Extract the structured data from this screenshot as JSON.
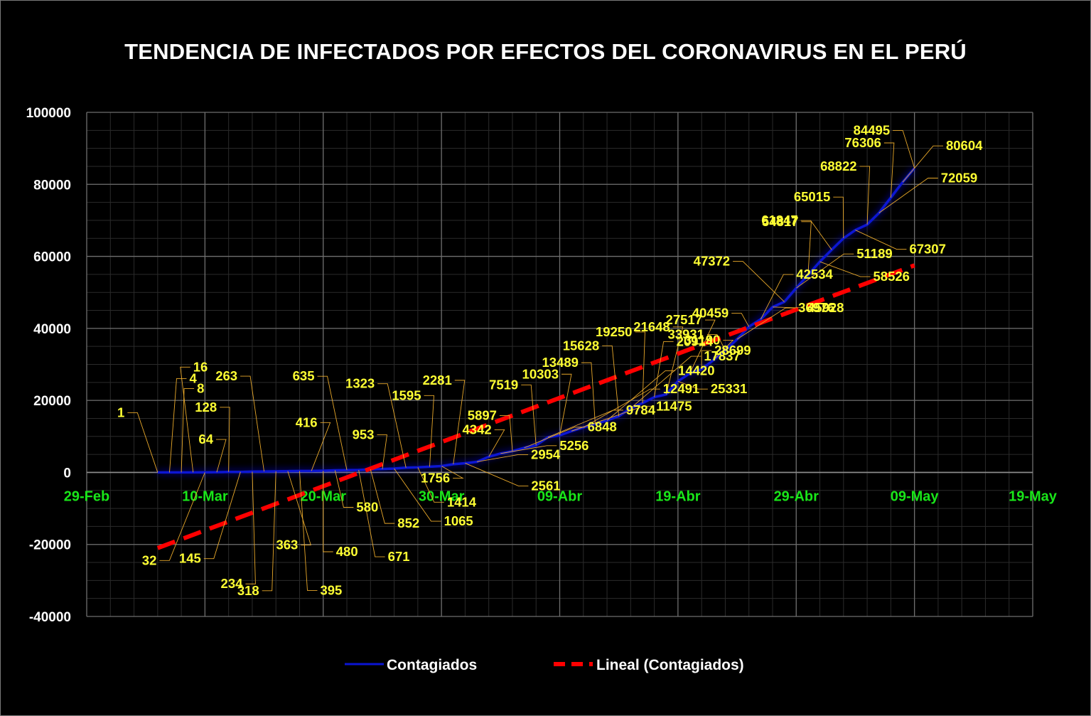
{
  "chart_data": {
    "type": "line",
    "title": "TENDENCIA DE INFECTADOS POR EFECTOS DEL CORONAVIRUS EN EL PERÚ",
    "xlabel": "",
    "ylabel": "",
    "x_axis": {
      "type": "date",
      "range": [
        "2020-02-29",
        "2020-05-19"
      ],
      "tick_labels": [
        "29-Feb",
        "10-Mar",
        "20-Mar",
        "30-Mar",
        "09-Abr",
        "19-Abr",
        "29-Abr",
        "09-May",
        "19-May"
      ]
    },
    "y_axis": {
      "range": [
        -40000,
        100000
      ],
      "tick_labels": [
        "100000",
        "80000",
        "60000",
        "40000",
        "20000",
        "0",
        "-20000",
        "-40000"
      ]
    },
    "grid": true,
    "legend_position": "bottom",
    "legend": [
      "Contagiados",
      "Lineal (Contagiados)"
    ],
    "series": [
      {
        "name": "Contagiados",
        "color": "#0a14d2",
        "points": [
          {
            "x": "2020-03-06",
            "y": 1
          },
          {
            "x": "2020-03-07",
            "y": 4
          },
          {
            "x": "2020-03-08",
            "y": 8
          },
          {
            "x": "2020-03-09",
            "y": 16
          },
          {
            "x": "2020-03-10",
            "y": 32
          },
          {
            "x": "2020-03-11",
            "y": 64
          },
          {
            "x": "2020-03-12",
            "y": 128
          },
          {
            "x": "2020-03-13",
            "y": 145
          },
          {
            "x": "2020-03-14",
            "y": 234
          },
          {
            "x": "2020-03-15",
            "y": 263
          },
          {
            "x": "2020-03-16",
            "y": 318
          },
          {
            "x": "2020-03-17",
            "y": 363
          },
          {
            "x": "2020-03-18",
            "y": 395
          },
          {
            "x": "2020-03-19",
            "y": 416
          },
          {
            "x": "2020-03-20",
            "y": 480
          },
          {
            "x": "2020-03-21",
            "y": 580
          },
          {
            "x": "2020-03-22",
            "y": 635
          },
          {
            "x": "2020-03-23",
            "y": 671
          },
          {
            "x": "2020-03-24",
            "y": 852
          },
          {
            "x": "2020-03-25",
            "y": 953
          },
          {
            "x": "2020-03-26",
            "y": 1065
          },
          {
            "x": "2020-03-27",
            "y": 1323
          },
          {
            "x": "2020-03-28",
            "y": 1414
          },
          {
            "x": "2020-03-29",
            "y": 1595
          },
          {
            "x": "2020-03-30",
            "y": 1756
          },
          {
            "x": "2020-03-31",
            "y": 2281
          },
          {
            "x": "2020-04-01",
            "y": 2561
          },
          {
            "x": "2020-04-02",
            "y": 2954
          },
          {
            "x": "2020-04-03",
            "y": 4342
          },
          {
            "x": "2020-04-04",
            "y": 5256
          },
          {
            "x": "2020-04-05",
            "y": 5897
          },
          {
            "x": "2020-04-06",
            "y": 6848
          },
          {
            "x": "2020-04-07",
            "y": 7519
          },
          {
            "x": "2020-04-08",
            "y": 9784
          },
          {
            "x": "2020-04-09",
            "y": 10303
          },
          {
            "x": "2020-04-10",
            "y": 11475
          },
          {
            "x": "2020-04-11",
            "y": 12491
          },
          {
            "x": "2020-04-12",
            "y": 13489
          },
          {
            "x": "2020-04-13",
            "y": 14420
          },
          {
            "x": "2020-04-14",
            "y": 15628
          },
          {
            "x": "2020-04-15",
            "y": 17837
          },
          {
            "x": "2020-04-16",
            "y": 19250
          },
          {
            "x": "2020-04-17",
            "y": 20914
          },
          {
            "x": "2020-04-18",
            "y": 21648
          },
          {
            "x": "2020-04-19",
            "y": 25331
          },
          {
            "x": "2020-04-20",
            "y": 27517
          },
          {
            "x": "2020-04-21",
            "y": 28699
          },
          {
            "x": "2020-04-22",
            "y": 31190
          },
          {
            "x": "2020-04-23",
            "y": 33931
          },
          {
            "x": "2020-04-24",
            "y": 36976
          },
          {
            "x": "2020-04-25",
            "y": 40459
          },
          {
            "x": "2020-04-26",
            "y": 42534
          },
          {
            "x": "2020-04-27",
            "y": 45928
          },
          {
            "x": "2020-04-28",
            "y": 47372
          },
          {
            "x": "2020-04-29",
            "y": 51189
          },
          {
            "x": "2020-04-30",
            "y": 54817
          },
          {
            "x": "2020-05-01",
            "y": 58526
          },
          {
            "x": "2020-05-02",
            "y": 61847
          },
          {
            "x": "2020-05-03",
            "y": 65015
          },
          {
            "x": "2020-05-04",
            "y": 67307
          },
          {
            "x": "2020-05-05",
            "y": 68822
          },
          {
            "x": "2020-05-06",
            "y": 72059
          },
          {
            "x": "2020-05-07",
            "y": 76306
          },
          {
            "x": "2020-05-08",
            "y": 80604
          },
          {
            "x": "2020-05-09",
            "y": 84495
          }
        ]
      },
      {
        "name": "Lineal (Contagiados)",
        "color": "#ff0000",
        "style": "dashed",
        "trendline": "linear",
        "points": [
          {
            "x": "2020-03-06",
            "y": -21000
          },
          {
            "x": "2020-05-09",
            "y": 57500
          }
        ]
      }
    ]
  }
}
